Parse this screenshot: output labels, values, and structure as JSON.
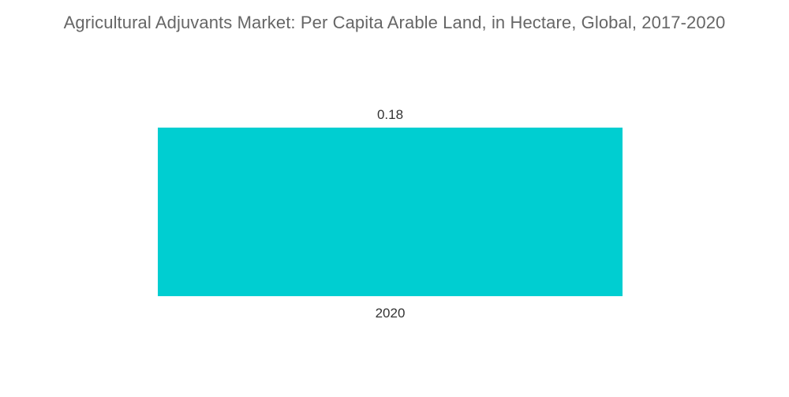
{
  "chart_data": {
    "type": "bar",
    "title": "Agricultural Adjuvants Market: Per Capita Arable Land, in Hectare, Global, 2017-2020",
    "categories": [
      "2020"
    ],
    "values": [
      0.18
    ],
    "value_labels": [
      "0.18"
    ],
    "xlabel": "",
    "ylabel": "",
    "ylim": [
      0,
      0.18
    ],
    "grid": false,
    "legend": "none",
    "bar_color": "#00CED1"
  }
}
